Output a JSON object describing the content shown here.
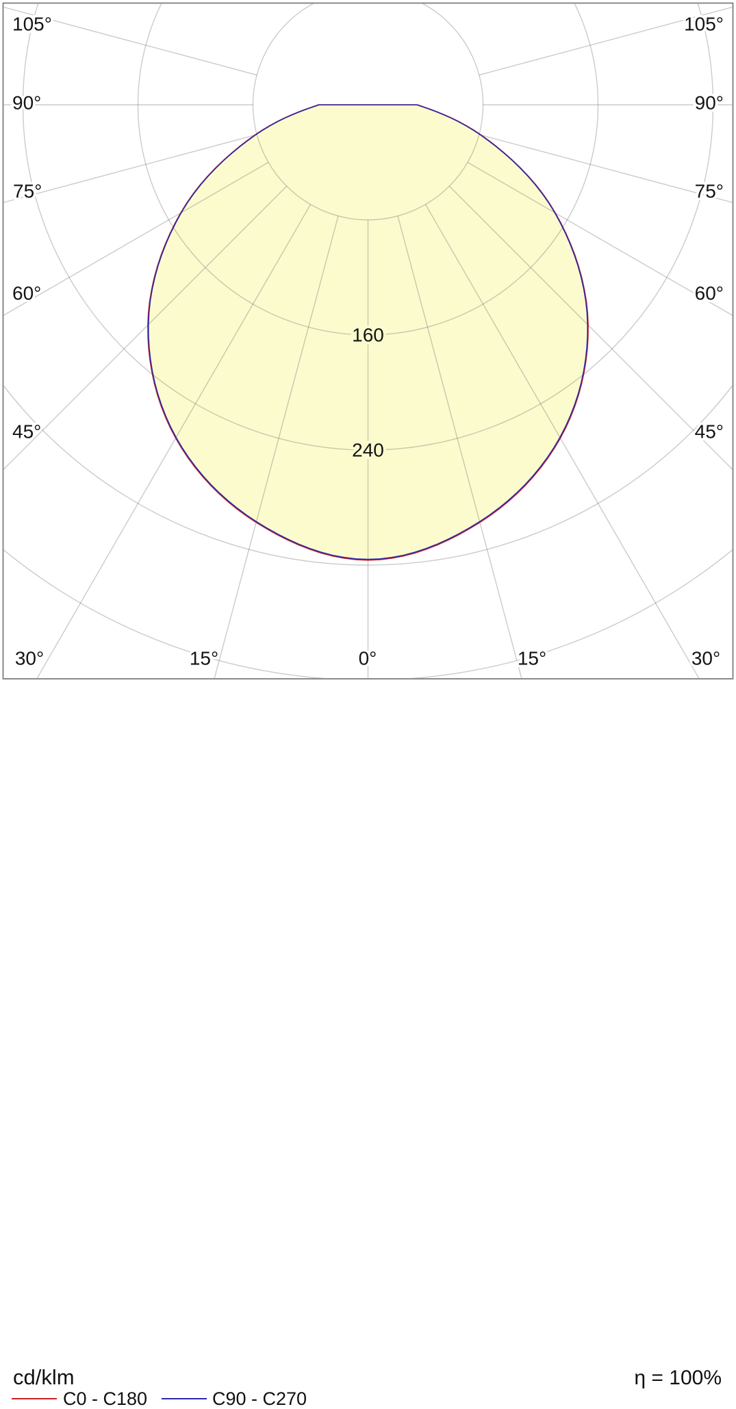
{
  "chart_data": {
    "type": "polar",
    "title": "",
    "unit_label": "cd/klm",
    "efficiency_label": "η = 100%",
    "gamma_deg": [
      0,
      15,
      30,
      45,
      60,
      75,
      90
    ],
    "series": [
      {
        "name": "C0 - C180",
        "color": "#c42222",
        "values_cd_per_klm": [
          316,
          300,
          267,
          216,
          150,
          81,
          34
        ]
      },
      {
        "name": "C90 - C270",
        "color": "#2a28a6",
        "values_cd_per_klm": [
          316,
          300,
          267,
          216,
          150,
          81,
          34
        ]
      }
    ],
    "rings_cd_per_klm": [
      80,
      160,
      240,
      320,
      400
    ],
    "ring_labels": [
      {
        "text": "160",
        "value": 160
      },
      {
        "text": "240",
        "value": 240
      }
    ],
    "angle_step_deg": 15,
    "max_angle_deg": 105,
    "angle_labels": {
      "left": [
        "105°",
        "90°",
        "75°",
        "60°",
        "45°"
      ],
      "right": [
        "105°",
        "90°",
        "75°",
        "60°",
        "45°"
      ],
      "bottom": [
        "30°",
        "15°",
        "0°",
        "15°",
        "30°"
      ]
    },
    "fill_color": "#fbfbce",
    "grid_on": true,
    "legend_position": "bottom"
  },
  "legend": {
    "unit_label": "cd/klm",
    "entries": [
      {
        "label": "C0 - C180",
        "color": "#c42222"
      },
      {
        "label": "C90 - C270",
        "color": "#2a28a6"
      }
    ],
    "efficiency": "η = 100%"
  }
}
